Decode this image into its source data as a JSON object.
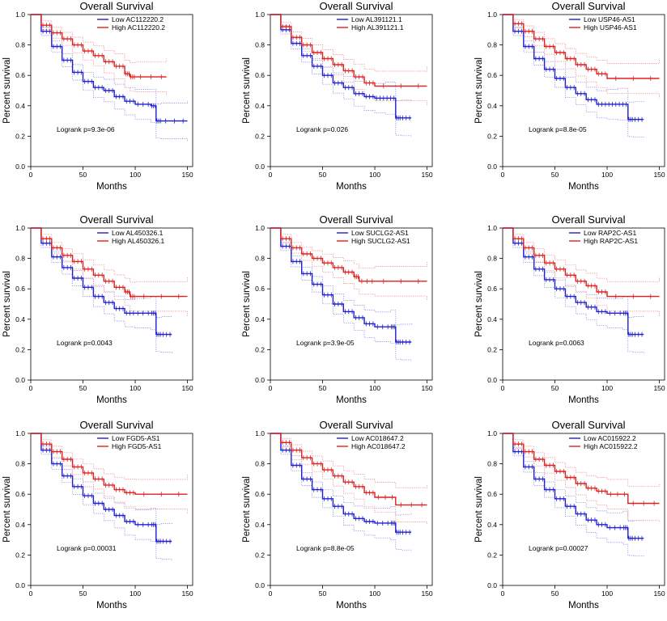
{
  "colors": {
    "low": "#1f1fd1",
    "high": "#e01f1f",
    "low_ci": "#7a7ae6",
    "high_ci": "#ec7a7a",
    "axis": "#000000"
  },
  "chart_data": [
    {
      "type": "line",
      "title": "Overall Survival",
      "xlabel": "Months",
      "ylabel": "Percent survival",
      "xlim": [
        0,
        155
      ],
      "ylim": [
        0,
        1.0
      ],
      "xticks": [
        "0",
        "50",
        "100",
        "150"
      ],
      "yticks": [
        "0.0",
        "0.2",
        "0.4",
        "0.6",
        "0.8",
        "1.0"
      ],
      "legend": [
        "Low AC112220.2",
        "High AC112220.2"
      ],
      "pvalue": "Logrank p=9.3e-06",
      "series": [
        {
          "name": "Low AC112220.2",
          "x": [
            0,
            10,
            20,
            30,
            40,
            50,
            60,
            70,
            80,
            90,
            100,
            115,
            120,
            125,
            150
          ],
          "y": [
            1.0,
            0.89,
            0.79,
            0.7,
            0.62,
            0.56,
            0.52,
            0.5,
            0.46,
            0.43,
            0.41,
            0.4,
            0.3,
            0.3,
            0.3
          ]
        },
        {
          "name": "High AC112220.2",
          "x": [
            0,
            10,
            20,
            30,
            40,
            50,
            60,
            70,
            80,
            90,
            95,
            100,
            130
          ],
          "y": [
            1.0,
            0.93,
            0.88,
            0.84,
            0.8,
            0.76,
            0.73,
            0.69,
            0.66,
            0.61,
            0.59,
            0.59,
            0.59
          ]
        }
      ]
    },
    {
      "type": "line",
      "title": "Overall Survival",
      "xlabel": "Months",
      "ylabel": "Percent survival",
      "xlim": [
        0,
        155
      ],
      "ylim": [
        0,
        1.0
      ],
      "xticks": [
        "0",
        "50",
        "100",
        "150"
      ],
      "yticks": [
        "0.0",
        "0.2",
        "0.4",
        "0.6",
        "0.8",
        "1.0"
      ],
      "legend": [
        "Low AL391121.1",
        "High AL391121.1"
      ],
      "pvalue": "Logrank p=0.026",
      "series": [
        {
          "name": "Low AL391121.1",
          "x": [
            0,
            10,
            20,
            30,
            40,
            50,
            60,
            70,
            80,
            90,
            100,
            110,
            120,
            125,
            135
          ],
          "y": [
            1.0,
            0.9,
            0.81,
            0.73,
            0.66,
            0.6,
            0.55,
            0.52,
            0.48,
            0.46,
            0.45,
            0.45,
            0.32,
            0.32,
            0.32
          ]
        },
        {
          "name": "High AL391121.1",
          "x": [
            0,
            10,
            20,
            30,
            40,
            50,
            60,
            70,
            80,
            90,
            100,
            150
          ],
          "y": [
            1.0,
            0.92,
            0.85,
            0.8,
            0.75,
            0.71,
            0.67,
            0.63,
            0.59,
            0.55,
            0.53,
            0.53
          ]
        }
      ]
    },
    {
      "type": "line",
      "title": "Overall Survival",
      "xlabel": "Months",
      "ylabel": "Percent survival",
      "xlim": [
        0,
        155
      ],
      "ylim": [
        0,
        1.0
      ],
      "xticks": [
        "0",
        "50",
        "100",
        "150"
      ],
      "yticks": [
        "0.0",
        "0.2",
        "0.4",
        "0.6",
        "0.8",
        "1.0"
      ],
      "legend": [
        "Low USP46-AS1",
        "High USP46-AS1"
      ],
      "pvalue": "Logrank p=8.8e-05",
      "series": [
        {
          "name": "Low USP46-AS1",
          "x": [
            0,
            10,
            20,
            30,
            40,
            50,
            60,
            70,
            80,
            90,
            100,
            110,
            120,
            125,
            135
          ],
          "y": [
            1.0,
            0.89,
            0.79,
            0.71,
            0.64,
            0.58,
            0.52,
            0.48,
            0.44,
            0.41,
            0.41,
            0.41,
            0.31,
            0.31,
            0.31
          ]
        },
        {
          "name": "High USP46-AS1",
          "x": [
            0,
            10,
            20,
            30,
            40,
            50,
            60,
            70,
            80,
            90,
            100,
            150
          ],
          "y": [
            1.0,
            0.94,
            0.89,
            0.84,
            0.79,
            0.75,
            0.71,
            0.67,
            0.64,
            0.61,
            0.58,
            0.58
          ]
        }
      ]
    },
    {
      "type": "line",
      "title": "Overall Survival",
      "xlabel": "Months",
      "ylabel": "Percent survival",
      "xlim": [
        0,
        155
      ],
      "ylim": [
        0,
        1.0
      ],
      "xticks": [
        "0",
        "50",
        "100",
        "150"
      ],
      "yticks": [
        "0.0",
        "0.2",
        "0.4",
        "0.6",
        "0.8",
        "1.0"
      ],
      "legend": [
        "Low AL450326.1",
        "High AL450326.1"
      ],
      "pvalue": "Logrank p=0.0043",
      "series": [
        {
          "name": "Low AL450326.1",
          "x": [
            0,
            10,
            20,
            30,
            40,
            50,
            60,
            70,
            80,
            90,
            100,
            115,
            120,
            125,
            135
          ],
          "y": [
            1.0,
            0.9,
            0.81,
            0.74,
            0.67,
            0.61,
            0.55,
            0.51,
            0.47,
            0.44,
            0.44,
            0.44,
            0.3,
            0.3,
            0.3
          ]
        },
        {
          "name": "High AL450326.1",
          "x": [
            0,
            10,
            20,
            30,
            40,
            50,
            60,
            70,
            80,
            90,
            95,
            100,
            150
          ],
          "y": [
            1.0,
            0.93,
            0.87,
            0.82,
            0.78,
            0.73,
            0.69,
            0.65,
            0.61,
            0.58,
            0.55,
            0.55,
            0.55
          ]
        }
      ]
    },
    {
      "type": "line",
      "title": "Overall Survival",
      "xlabel": "Months",
      "ylabel": "Percent survival",
      "xlim": [
        0,
        155
      ],
      "ylim": [
        0,
        1.0
      ],
      "xticks": [
        "0",
        "50",
        "100",
        "150"
      ],
      "yticks": [
        "0.0",
        "0.2",
        "0.4",
        "0.6",
        "0.8",
        "1.0"
      ],
      "legend": [
        "Low SUCLG2-AS1",
        "High SUCLG2-AS1"
      ],
      "pvalue": "Logrank p=3.9e-05",
      "series": [
        {
          "name": "Low SUCLG2-AS1",
          "x": [
            0,
            10,
            20,
            30,
            40,
            50,
            60,
            70,
            80,
            90,
            100,
            115,
            120,
            125,
            135
          ],
          "y": [
            1.0,
            0.88,
            0.78,
            0.7,
            0.63,
            0.56,
            0.5,
            0.45,
            0.41,
            0.37,
            0.35,
            0.35,
            0.25,
            0.25,
            0.25
          ]
        },
        {
          "name": "High SUCLG2-AS1",
          "x": [
            0,
            10,
            20,
            30,
            40,
            50,
            60,
            70,
            80,
            85,
            100,
            150
          ],
          "y": [
            1.0,
            0.93,
            0.87,
            0.83,
            0.8,
            0.77,
            0.74,
            0.71,
            0.68,
            0.65,
            0.65,
            0.65
          ]
        }
      ]
    },
    {
      "type": "line",
      "title": "Overall Survival",
      "xlabel": "Months",
      "ylabel": "Percent survival",
      "xlim": [
        0,
        155
      ],
      "ylim": [
        0,
        1.0
      ],
      "xticks": [
        "0",
        "50",
        "100",
        "150"
      ],
      "yticks": [
        "0.0",
        "0.2",
        "0.4",
        "0.6",
        "0.8",
        "1.0"
      ],
      "legend": [
        "Low RAP2C-AS1",
        "High RAP2C-AS1"
      ],
      "pvalue": "Logrank p=0.0063",
      "series": [
        {
          "name": "Low RAP2C-AS1",
          "x": [
            0,
            10,
            20,
            30,
            40,
            50,
            60,
            70,
            80,
            90,
            100,
            115,
            120,
            125,
            135
          ],
          "y": [
            1.0,
            0.9,
            0.81,
            0.73,
            0.66,
            0.6,
            0.55,
            0.51,
            0.48,
            0.45,
            0.44,
            0.44,
            0.3,
            0.3,
            0.3
          ]
        },
        {
          "name": "High RAP2C-AS1",
          "x": [
            0,
            10,
            20,
            30,
            40,
            50,
            60,
            70,
            80,
            90,
            100,
            150
          ],
          "y": [
            1.0,
            0.93,
            0.87,
            0.82,
            0.77,
            0.73,
            0.69,
            0.65,
            0.62,
            0.58,
            0.55,
            0.55
          ]
        }
      ]
    },
    {
      "type": "line",
      "title": "Overall Survival",
      "xlabel": "Months",
      "ylabel": "Percent survival",
      "xlim": [
        0,
        155
      ],
      "ylim": [
        0,
        1.0
      ],
      "xticks": [
        "0",
        "50",
        "100",
        "150"
      ],
      "yticks": [
        "0.0",
        "0.2",
        "0.4",
        "0.6",
        "0.8",
        "1.0"
      ],
      "legend": [
        "Low FGD5-AS1",
        "High FGD5-AS1"
      ],
      "pvalue": "Logrank p=0.00031",
      "series": [
        {
          "name": "Low FGD5-AS1",
          "x": [
            0,
            10,
            20,
            30,
            40,
            50,
            60,
            70,
            80,
            90,
            100,
            115,
            120,
            125,
            135
          ],
          "y": [
            1.0,
            0.89,
            0.8,
            0.72,
            0.65,
            0.59,
            0.54,
            0.5,
            0.46,
            0.42,
            0.4,
            0.4,
            0.29,
            0.29,
            0.29
          ]
        },
        {
          "name": "High FGD5-AS1",
          "x": [
            0,
            10,
            20,
            30,
            40,
            50,
            60,
            70,
            80,
            90,
            100,
            150
          ],
          "y": [
            1.0,
            0.93,
            0.88,
            0.83,
            0.78,
            0.74,
            0.7,
            0.66,
            0.63,
            0.61,
            0.6,
            0.6
          ]
        }
      ]
    },
    {
      "type": "line",
      "title": "Overall Survival",
      "xlabel": "Months",
      "ylabel": "Percent survival",
      "xlim": [
        0,
        155
      ],
      "ylim": [
        0,
        1.0
      ],
      "xticks": [
        "0",
        "50",
        "100",
        "150"
      ],
      "yticks": [
        "0.0",
        "0.2",
        "0.4",
        "0.6",
        "0.8",
        "1.0"
      ],
      "legend": [
        "Low AC018647.2",
        "High AC018647.2"
      ],
      "pvalue": "Logrank p=8.8e-05",
      "series": [
        {
          "name": "Low AC018647.2",
          "x": [
            0,
            10,
            20,
            30,
            40,
            50,
            60,
            70,
            80,
            90,
            100,
            115,
            120,
            125,
            135
          ],
          "y": [
            1.0,
            0.89,
            0.79,
            0.7,
            0.63,
            0.57,
            0.52,
            0.47,
            0.44,
            0.42,
            0.41,
            0.41,
            0.35,
            0.35,
            0.35
          ]
        },
        {
          "name": "High AC018647.2",
          "x": [
            0,
            10,
            20,
            30,
            40,
            50,
            60,
            70,
            80,
            90,
            100,
            120,
            150
          ],
          "y": [
            1.0,
            0.94,
            0.89,
            0.84,
            0.8,
            0.76,
            0.72,
            0.68,
            0.65,
            0.61,
            0.58,
            0.53,
            0.53
          ]
        }
      ]
    },
    {
      "type": "line",
      "title": "Overall Survival",
      "xlabel": "Months",
      "ylabel": "Percent survival",
      "xlim": [
        0,
        155
      ],
      "ylim": [
        0,
        1.0
      ],
      "xticks": [
        "0",
        "50",
        "100",
        "150"
      ],
      "yticks": [
        "0.0",
        "0.2",
        "0.4",
        "0.6",
        "0.8",
        "1.0"
      ],
      "legend": [
        "Low AC015922.2",
        "High AC015922.2"
      ],
      "pvalue": "Logrank p=0.00027",
      "series": [
        {
          "name": "Low AC015922.2",
          "x": [
            0,
            10,
            20,
            30,
            40,
            50,
            60,
            70,
            80,
            90,
            100,
            115,
            120,
            125,
            135
          ],
          "y": [
            1.0,
            0.88,
            0.78,
            0.7,
            0.63,
            0.57,
            0.52,
            0.47,
            0.43,
            0.4,
            0.38,
            0.38,
            0.31,
            0.31,
            0.31
          ]
        },
        {
          "name": "High AC015922.2",
          "x": [
            0,
            10,
            20,
            30,
            40,
            50,
            60,
            70,
            80,
            90,
            100,
            120,
            150
          ],
          "y": [
            1.0,
            0.93,
            0.88,
            0.83,
            0.79,
            0.75,
            0.71,
            0.67,
            0.64,
            0.62,
            0.6,
            0.54,
            0.54
          ]
        }
      ]
    }
  ]
}
